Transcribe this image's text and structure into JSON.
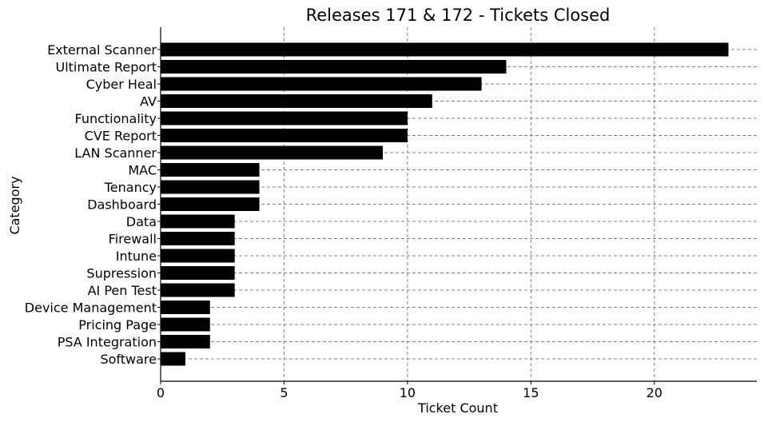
{
  "chart_data": {
    "type": "bar",
    "orientation": "horizontal",
    "title": "Releases 171 & 172 - Tickets Closed",
    "xlabel": "Ticket Count",
    "ylabel": "Category",
    "categories": [
      "External Scanner",
      "Ultimate Report",
      "Cyber Heal",
      "AV",
      "Functionality",
      "CVE Report",
      "LAN Scanner",
      "MAC",
      "Tenancy",
      "Dashboard",
      "Data",
      "Firewall",
      "Intune",
      "Supression",
      "AI Pen Test",
      "Device Management",
      "Pricing Page",
      "PSA Integration",
      "Software"
    ],
    "values": [
      23,
      14,
      13,
      11,
      10,
      10,
      9,
      4,
      4,
      4,
      3,
      3,
      3,
      3,
      3,
      2,
      2,
      2,
      1
    ],
    "xlim": [
      0,
      24.15
    ],
    "xticks": [
      0,
      5,
      10,
      15,
      20
    ],
    "grid": true,
    "bar_color": "#000000",
    "grid_color": "#808080"
  }
}
